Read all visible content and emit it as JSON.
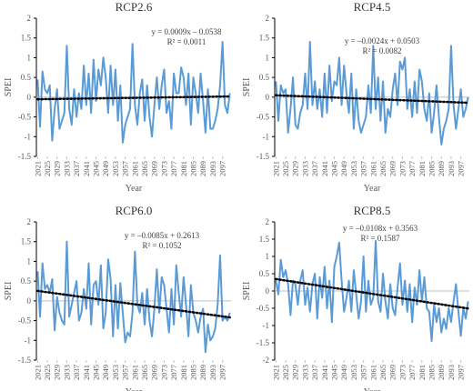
{
  "chart_data": [
    {
      "type": "line",
      "title": "RCP2.6",
      "x_label": "Year",
      "y_label": "SPEI",
      "x": [
        2021,
        2022,
        2023,
        2024,
        2025,
        2026,
        2027,
        2028,
        2029,
        2030,
        2031,
        2032,
        2033,
        2034,
        2035,
        2036,
        2037,
        2038,
        2039,
        2040,
        2041,
        2042,
        2043,
        2044,
        2045,
        2046,
        2047,
        2048,
        2049,
        2050,
        2051,
        2052,
        2053,
        2054,
        2055,
        2056,
        2057,
        2058,
        2059,
        2060,
        2061,
        2062,
        2063,
        2064,
        2065,
        2066,
        2067,
        2068,
        2069,
        2070,
        2071,
        2072,
        2073,
        2074,
        2075,
        2076,
        2077,
        2078,
        2079,
        2080,
        2081,
        2082,
        2083,
        2084,
        2085,
        2086,
        2087,
        2088,
        2089,
        2090,
        2091,
        2092,
        2093,
        2094,
        2095,
        2096,
        2097,
        2098,
        2099,
        2100
      ],
      "series": [
        {
          "color": "#5b9bd5",
          "values": [
            0.45,
            -0.75,
            0.65,
            0.2,
            0.1,
            0.3,
            -1.1,
            -0.3,
            0.2,
            -0.8,
            -0.6,
            -0.4,
            1.3,
            -0.3,
            -0.7,
            0.2,
            -0.5,
            0.1,
            -0.3,
            0.8,
            -0.2,
            0.6,
            -0.4,
            0.95,
            -0.1,
            0.7,
            0.3,
            1.0,
            0.5,
            -0.4,
            0.8,
            -0.2,
            0.7,
            -0.6,
            0.3,
            -1.15,
            -0.7,
            -0.5,
            -0.3,
            1.35,
            -0.2,
            -0.7,
            0.1,
            0.45,
            -0.6,
            0.3,
            -0.5,
            -1.0,
            -0.2,
            0.5,
            -0.3,
            0.3,
            0.7,
            -0.4,
            -0.1,
            -0.8,
            0.6,
            0.1,
            0.1,
            0.75,
            0.5,
            -0.2,
            0.6,
            -0.7,
            0.5,
            0.1,
            -0.4,
            0.6,
            -0.1,
            -0.9,
            0.2,
            -0.8,
            -0.8,
            -0.6,
            -0.3,
            0.3,
            1.4,
            -0.2,
            -0.4,
            0.1
          ]
        }
      ],
      "trendline": {
        "slope": 0.0009,
        "intercept": -0.0538,
        "equation": "y = 0.0009x – 0.0538",
        "r2_label": "R² = 0.0011",
        "color": "#000000"
      },
      "xlim": [
        2020.5,
        2100.5
      ],
      "xticks": [
        2021,
        2025,
        2029,
        2033,
        2037,
        2041,
        2045,
        2049,
        2053,
        2057,
        2061,
        2065,
        2069,
        2073,
        2077,
        2081,
        2085,
        2089,
        2093,
        2097
      ],
      "ylim": [
        -1.5,
        2
      ],
      "yticks": [
        -1.5,
        -1,
        -0.5,
        0,
        0.5,
        1,
        1.5,
        2
      ]
    },
    {
      "type": "line",
      "title": "RCP4.5",
      "x_label": "Year",
      "y_label": "SPEI",
      "x": [
        2021,
        2022,
        2023,
        2024,
        2025,
        2026,
        2027,
        2028,
        2029,
        2030,
        2031,
        2032,
        2033,
        2034,
        2035,
        2036,
        2037,
        2038,
        2039,
        2040,
        2041,
        2042,
        2043,
        2044,
        2045,
        2046,
        2047,
        2048,
        2049,
        2050,
        2051,
        2052,
        2053,
        2054,
        2055,
        2056,
        2057,
        2058,
        2059,
        2060,
        2061,
        2062,
        2063,
        2064,
        2065,
        2066,
        2067,
        2068,
        2069,
        2070,
        2071,
        2072,
        2073,
        2074,
        2075,
        2076,
        2077,
        2078,
        2079,
        2080,
        2081,
        2082,
        2083,
        2084,
        2085,
        2086,
        2087,
        2088,
        2089,
        2090,
        2091,
        2092,
        2093,
        2094,
        2095,
        2096,
        2097,
        2098,
        2099,
        2100
      ],
      "series": [
        {
          "color": "#5b9bd5",
          "values": [
            0.4,
            -0.6,
            0.3,
            0.1,
            0.2,
            -0.9,
            -0.3,
            0.5,
            -0.7,
            -0.8,
            -0.4,
            -0.2,
            0.6,
            -0.3,
            1.4,
            -0.2,
            0.4,
            -0.3,
            0.2,
            -0.5,
            0.6,
            -0.4,
            0.8,
            -0.1,
            0.4,
            0.3,
            1.0,
            -0.2,
            0.8,
            0.1,
            -0.4,
            0.6,
            -0.8,
            0.2,
            -0.6,
            -0.9,
            -0.7,
            -0.5,
            0.3,
            -0.4,
            1.3,
            -0.3,
            0.5,
            -0.6,
            0.4,
            -0.9,
            -0.3,
            -0.5,
            0.2,
            0.6,
            -0.2,
            0.9,
            0.7,
            1.0,
            -0.3,
            0.2,
            -0.5,
            0.4,
            -0.4,
            0.7,
            0.4,
            -0.3,
            -0.6,
            0.1,
            -0.9,
            -0.4,
            0.3,
            -0.5,
            -1.2,
            -0.8,
            -0.6,
            -0.3,
            1.3,
            -0.2,
            -0.8,
            -0.3,
            0.2,
            -0.5,
            -0.3,
            0.0
          ]
        }
      ],
      "trendline": {
        "slope": -0.0024,
        "intercept": 0.0503,
        "equation": "y = –0.0024x + 0.0503",
        "r2_label": "R² = 0.0082",
        "color": "#000000"
      },
      "xlim": [
        2020.5,
        2100.5
      ],
      "xticks": [
        2021,
        2025,
        2029,
        2033,
        2037,
        2041,
        2045,
        2049,
        2053,
        2057,
        2061,
        2065,
        2069,
        2073,
        2077,
        2081,
        2085,
        2089,
        2093,
        2097
      ],
      "ylim": [
        -1.5,
        2
      ],
      "yticks": [
        -1.5,
        -1,
        -0.5,
        0,
        0.5,
        1,
        1.5,
        2
      ]
    },
    {
      "type": "line",
      "title": "RCP6.0",
      "x_label": "Year",
      "y_label": "SPEI",
      "x": [
        2021,
        2022,
        2023,
        2024,
        2025,
        2026,
        2027,
        2028,
        2029,
        2030,
        2031,
        2032,
        2033,
        2034,
        2035,
        2036,
        2037,
        2038,
        2039,
        2040,
        2041,
        2042,
        2043,
        2044,
        2045,
        2046,
        2047,
        2048,
        2049,
        2050,
        2051,
        2052,
        2053,
        2054,
        2055,
        2056,
        2057,
        2058,
        2059,
        2060,
        2061,
        2062,
        2063,
        2064,
        2065,
        2066,
        2067,
        2068,
        2069,
        2070,
        2071,
        2072,
        2073,
        2074,
        2075,
        2076,
        2077,
        2078,
        2079,
        2080,
        2081,
        2082,
        2083,
        2084,
        2085,
        2086,
        2087,
        2088,
        2089,
        2090,
        2091,
        2092,
        2093,
        2094,
        2095,
        2096,
        2097,
        2098,
        2099,
        2100
      ],
      "series": [
        {
          "color": "#5b9bd5",
          "values": [
            0.75,
            -0.4,
            0.95,
            0.3,
            0.4,
            0.2,
            0.55,
            -0.75,
            0.1,
            -0.3,
            -0.5,
            -0.6,
            1.5,
            -0.4,
            -0.1,
            0.2,
            0.5,
            -0.5,
            -0.3,
            0.3,
            -0.2,
            0.95,
            -0.6,
            0.4,
            0.5,
            -0.1,
            0.9,
            -0.7,
            -0.3,
            1.05,
            0.55,
            -0.9,
            0.4,
            -0.7,
            0.45,
            -0.3,
            -1.05,
            -0.8,
            -0.9,
            -0.3,
            1.25,
            -0.1,
            -0.3,
            0.2,
            -0.6,
            0.3,
            -0.5,
            -0.9,
            -0.2,
            0.8,
            -0.3,
            0.6,
            0.4,
            -0.2,
            -0.8,
            0.3,
            -0.6,
            0.9,
            0.2,
            -0.4,
            0.6,
            -0.1,
            -0.9,
            0.4,
            -0.3,
            -0.5,
            -0.8,
            -0.4,
            -0.2,
            -1.3,
            -0.6,
            -1.0,
            -0.9,
            -0.7,
            -0.1,
            1.15,
            -0.5,
            -0.4,
            -0.5,
            -0.3
          ]
        }
      ],
      "trendline": {
        "slope": -0.0085,
        "intercept": 0.2613,
        "equation": "y = –0.0085x + 0.2613",
        "r2_label": "R² = 0.1052",
        "color": "#000000"
      },
      "xlim": [
        2020.5,
        2100.5
      ],
      "xticks": [
        2021,
        2025,
        2029,
        2033,
        2037,
        2041,
        2045,
        2049,
        2053,
        2057,
        2061,
        2065,
        2069,
        2073,
        2077,
        2081,
        2085,
        2089,
        2093,
        2097
      ],
      "ylim": [
        -1.5,
        2
      ],
      "yticks": [
        -1.5,
        -1,
        -0.5,
        0,
        0.5,
        1,
        1.5,
        2
      ]
    },
    {
      "type": "line",
      "title": "RCP8.5",
      "x_label": "Year",
      "y_label": "SPEI",
      "x": [
        2021,
        2022,
        2023,
        2024,
        2025,
        2026,
        2027,
        2028,
        2029,
        2030,
        2031,
        2032,
        2033,
        2034,
        2035,
        2036,
        2037,
        2038,
        2039,
        2040,
        2041,
        2042,
        2043,
        2044,
        2045,
        2046,
        2047,
        2048,
        2049,
        2050,
        2051,
        2052,
        2053,
        2054,
        2055,
        2056,
        2057,
        2058,
        2059,
        2060,
        2061,
        2062,
        2063,
        2064,
        2065,
        2066,
        2067,
        2068,
        2069,
        2070,
        2071,
        2072,
        2073,
        2074,
        2075,
        2076,
        2077,
        2078,
        2079,
        2080,
        2081,
        2082,
        2083,
        2084,
        2085,
        2086,
        2087,
        2088,
        2089,
        2090,
        2091,
        2092,
        2093,
        2094,
        2095,
        2096,
        2097,
        2098,
        2099,
        2100
      ],
      "series": [
        {
          "color": "#5b9bd5",
          "values": [
            0.3,
            -0.1,
            0.9,
            0.4,
            0.6,
            0.2,
            -0.7,
            0.3,
            0.2,
            -0.4,
            0.3,
            0.6,
            -0.4,
            0.1,
            -0.6,
            0.2,
            0.5,
            -0.8,
            0.4,
            -0.2,
            0.7,
            -0.5,
            0.3,
            -0.9,
            0.7,
            1.0,
            1.4,
            0.3,
            -0.6,
            -0.2,
            0.3,
            -0.6,
            0.6,
            -0.1,
            -0.8,
            -0.3,
            1.0,
            -0.6,
            0.3,
            -0.4,
            -0.2,
            1.45,
            -0.3,
            -0.6,
            0.5,
            -0.3,
            -0.8,
            0.2,
            -0.5,
            -0.7,
            0.1,
            0.8,
            -0.4,
            0.3,
            -0.6,
            0.2,
            -0.9,
            0.1,
            -0.4,
            0.6,
            -0.3,
            0.4,
            -0.5,
            -0.6,
            -1.45,
            -0.4,
            -0.9,
            -0.5,
            -1.2,
            -0.8,
            -1.1,
            -0.5,
            -0.9,
            -0.3,
            0.2,
            -0.6,
            -1.3,
            -0.5,
            -0.8,
            -0.3
          ]
        }
      ],
      "trendline": {
        "slope": -0.0108,
        "intercept": 0.3563,
        "equation": "y = –0.0108x + 0.3563",
        "r2_label": "R² = 0.1587",
        "color": "#000000"
      },
      "xlim": [
        2020.5,
        2100.5
      ],
      "xticks": [
        2021,
        2025,
        2029,
        2033,
        2037,
        2041,
        2045,
        2049,
        2053,
        2057,
        2061,
        2065,
        2069,
        2073,
        2077,
        2081,
        2085,
        2089,
        2093,
        2097
      ],
      "ylim": [
        -2,
        2
      ],
      "yticks": [
        -2,
        -1.5,
        -1,
        -0.5,
        0,
        0.5,
        1,
        1.5,
        2
      ]
    }
  ]
}
